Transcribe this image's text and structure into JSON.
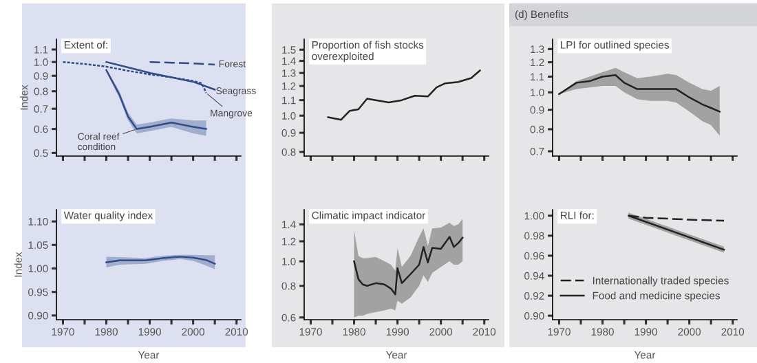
{
  "chart_data": [
    {
      "type": "line",
      "title": "Extent of:",
      "ylabel": "Index",
      "log": "y",
      "legend": false,
      "tick_labels": "y",
      "xlim": [
        1968.5,
        2011
      ],
      "xticks": [
        1970,
        1975,
        1980,
        1985,
        1990,
        1995,
        2000,
        2005,
        2010
      ],
      "ylim": [
        0.488,
        1.19
      ],
      "yticks": [
        0.5,
        0.6,
        0.7,
        0.8,
        0.9,
        {
          "value": 1,
          "label": "1.0"
        },
        1.1
      ],
      "series": [
        {
          "name": "Forest",
          "color": "#2e4d8c",
          "line_style": "dashed",
          "x": [
            1990,
            1995,
            2000,
            2005
          ],
          "values": [
            1.0,
            0.995,
            0.99,
            0.98
          ]
        },
        {
          "name": "Seagrass",
          "color": "#2e4d8c",
          "line_style": "solid",
          "x": [
            1980,
            1985,
            1990,
            1995,
            2000,
            2005
          ],
          "values": [
            1.0,
            0.96,
            0.92,
            0.89,
            0.86,
            0.81
          ]
        },
        {
          "name": "Mangrove",
          "color": "#2e4d8c",
          "line_style": "dotted",
          "x": [
            1970,
            1975,
            1980,
            1985,
            1990,
            1995,
            2000,
            2002,
            2003
          ],
          "values": [
            1.0,
            0.985,
            0.965,
            0.935,
            0.91,
            0.89,
            0.865,
            0.85,
            0.79
          ]
        },
        {
          "name": "Coral reef\ncondition",
          "color": "#2e4d8c",
          "line_style": "solid",
          "x": [
            1980,
            1983,
            1985,
            1987,
            1990,
            1995,
            2000,
            2003
          ],
          "values": [
            0.94,
            0.78,
            0.66,
            0.6,
            0.61,
            0.63,
            0.61,
            0.6
          ],
          "lower": [
            0.93,
            0.76,
            0.64,
            0.58,
            0.59,
            0.61,
            0.58,
            0.57
          ],
          "upper": [
            0.95,
            0.8,
            0.68,
            0.62,
            0.63,
            0.65,
            0.64,
            0.64
          ]
        }
      ]
    },
    {
      "type": "line",
      "title": "Proportion of fish stocks\noverexploited",
      "log": "y",
      "tick_labels": "y",
      "xlim": [
        1968.5,
        2011
      ],
      "xticks": [
        1970,
        1975,
        1980,
        1985,
        1990,
        1995,
        2000,
        2005,
        2010
      ],
      "ylim": [
        0.78,
        1.6
      ],
      "yticks": [
        0.8,
        0.9,
        {
          "value": 1,
          "label": "1.0"
        },
        1.1,
        1.2,
        1.3,
        1.4,
        1.5
      ],
      "series": [
        {
          "color": "#222222",
          "x": [
            1974,
            1977,
            1979,
            1981,
            1983,
            1985,
            1988,
            1991,
            1994,
            1997,
            1999,
            2001,
            2004,
            2007,
            2009
          ],
          "values": [
            0.99,
            0.975,
            1.03,
            1.04,
            1.11,
            1.1,
            1.085,
            1.1,
            1.13,
            1.125,
            1.19,
            1.22,
            1.23,
            1.26,
            1.32
          ]
        }
      ]
    },
    {
      "type": "line",
      "title": "(d) Benefits",
      "subtitle": "LPI for outlined species",
      "log": "y",
      "tick_labels": "y",
      "xlim": [
        1968.5,
        2011
      ],
      "xticks": [
        1970,
        1975,
        1980,
        1985,
        1990,
        1995,
        2000,
        2005,
        2010
      ],
      "ylim": [
        0.68,
        1.38
      ],
      "yticks": [
        0.7,
        0.8,
        0.9,
        {
          "value": 1,
          "label": "1.0"
        },
        1.1,
        1.2,
        1.3
      ],
      "series": [
        {
          "color": "#222222",
          "x": [
            1970,
            1974,
            1977,
            1980,
            1983,
            1985,
            1988,
            1991,
            1995,
            1997,
            2000,
            2003,
            2005,
            2007
          ],
          "values": [
            0.99,
            1.06,
            1.07,
            1.1,
            1.11,
            1.06,
            1.02,
            1.02,
            1.02,
            1.02,
            0.97,
            0.93,
            0.91,
            0.89
          ],
          "lower": [
            0.99,
            1.02,
            1.03,
            1.04,
            1.04,
            1.0,
            0.96,
            0.95,
            0.95,
            0.94,
            0.89,
            0.84,
            0.82,
            0.77
          ],
          "upper": [
            0.99,
            1.07,
            1.1,
            1.13,
            1.16,
            1.13,
            1.09,
            1.1,
            1.12,
            1.11,
            1.06,
            1.02,
            1.01,
            1.04
          ]
        }
      ]
    },
    {
      "type": "line",
      "title": "Water quality index",
      "ylabel": "Index",
      "xlabel": "Year",
      "xlim": [
        1968.5,
        2011
      ],
      "xticks": [
        1970,
        {
          "value": 1975,
          "label": null
        },
        1980,
        {
          "value": 1985,
          "label": null
        },
        1990,
        {
          "value": 1995,
          "label": null
        },
        2000,
        {
          "value": 2005,
          "label": null
        },
        2010
      ],
      "ylim": [
        0.891,
        1.125
      ],
      "yticks": [
        {
          "value": 0.9,
          "label": "0.90"
        },
        0.95,
        {
          "value": 1.0,
          "label": "1.00"
        },
        1.05,
        {
          "value": 1.1,
          "label": "1.10"
        }
      ],
      "series": [
        {
          "color": "#2e4d8c",
          "x": [
            1980,
            1983,
            1989,
            1993,
            1997,
            2000,
            2003,
            2005
          ],
          "values": [
            1.013,
            1.017,
            1.017,
            1.022,
            1.025,
            1.023,
            1.018,
            1.01
          ],
          "lower": [
            1.002,
            1.008,
            1.01,
            1.016,
            1.02,
            1.016,
            1.006,
            0.998
          ],
          "upper": [
            1.025,
            1.024,
            1.022,
            1.027,
            1.029,
            1.029,
            1.028,
            1.028
          ]
        }
      ]
    },
    {
      "type": "line",
      "title": "Climatic impact indicator",
      "xlabel": "Year",
      "log": "y",
      "xlim": [
        1968.5,
        2011
      ],
      "xticks": [
        1970,
        {
          "value": 1975,
          "label": null
        },
        1980,
        {
          "value": 1985,
          "label": null
        },
        1990,
        {
          "value": 1995,
          "label": null
        },
        2000,
        {
          "value": 2005,
          "label": null
        },
        2010
      ],
      "ylim": [
        0.588,
        1.6
      ],
      "yticks": [
        0.6,
        0.8,
        {
          "value": 1,
          "label": "1.0"
        },
        1.2,
        1.4
      ],
      "series": [
        {
          "color": "#222222",
          "x": [
            1980,
            1981,
            1982,
            1983,
            1985,
            1987,
            1988.5,
            1989.5,
            1990,
            1991,
            1993,
            1995,
            1996,
            1997,
            1998,
            2000,
            2002,
            2003,
            2004,
            2005
          ],
          "values": [
            1.0,
            0.85,
            0.81,
            0.8,
            0.82,
            0.81,
            0.78,
            0.74,
            0.94,
            0.82,
            0.89,
            0.97,
            1.14,
            0.99,
            1.13,
            1.12,
            1.25,
            1.14,
            1.18,
            1.24
          ],
          "lower": [
            0.6,
            0.61,
            0.61,
            0.62,
            0.63,
            0.64,
            0.65,
            0.64,
            0.7,
            0.68,
            0.72,
            0.8,
            0.88,
            0.83,
            0.9,
            0.95,
            1.0,
            0.97,
            0.97,
            1.0
          ],
          "upper": [
            1.33,
            1.05,
            1.03,
            1.03,
            1.04,
            1.0,
            0.97,
            0.92,
            1.13,
            0.95,
            1.05,
            1.25,
            1.35,
            1.15,
            1.35,
            1.36,
            1.42,
            1.38,
            1.4,
            1.47
          ]
        }
      ]
    },
    {
      "type": "line",
      "title": "RLI for:",
      "xlabel": "Year",
      "legend": "bottom",
      "xlim": [
        1968.5,
        2011
      ],
      "xticks": [
        1970,
        {
          "value": 1975,
          "label": null
        },
        1980,
        {
          "value": 1985,
          "label": null
        },
        1990,
        {
          "value": 1995,
          "label": null
        },
        2000,
        {
          "value": 2005,
          "label": null
        },
        2010
      ],
      "ylim": [
        0.896,
        1.006
      ],
      "yticks": [
        {
          "value": 0.9,
          "label": "0.90"
        },
        0.92,
        0.94,
        0.96,
        0.98,
        {
          "value": 1.0,
          "label": "1.00"
        }
      ],
      "series": [
        {
          "name": "Internationally traded species",
          "color": "#222222",
          "line_style": "dashed",
          "x": [
            1986,
            1990,
            2000,
            2008
          ],
          "values": [
            1.0,
            0.998,
            0.996,
            0.995
          ]
        },
        {
          "name": "Food and medicine species",
          "color": "#222222",
          "line_style": "solid",
          "x": [
            1986,
            2008
          ],
          "values": [
            1.0,
            0.966
          ],
          "lower": [
            0.997,
            0.963
          ],
          "upper": [
            1.003,
            0.969
          ]
        }
      ]
    }
  ]
}
